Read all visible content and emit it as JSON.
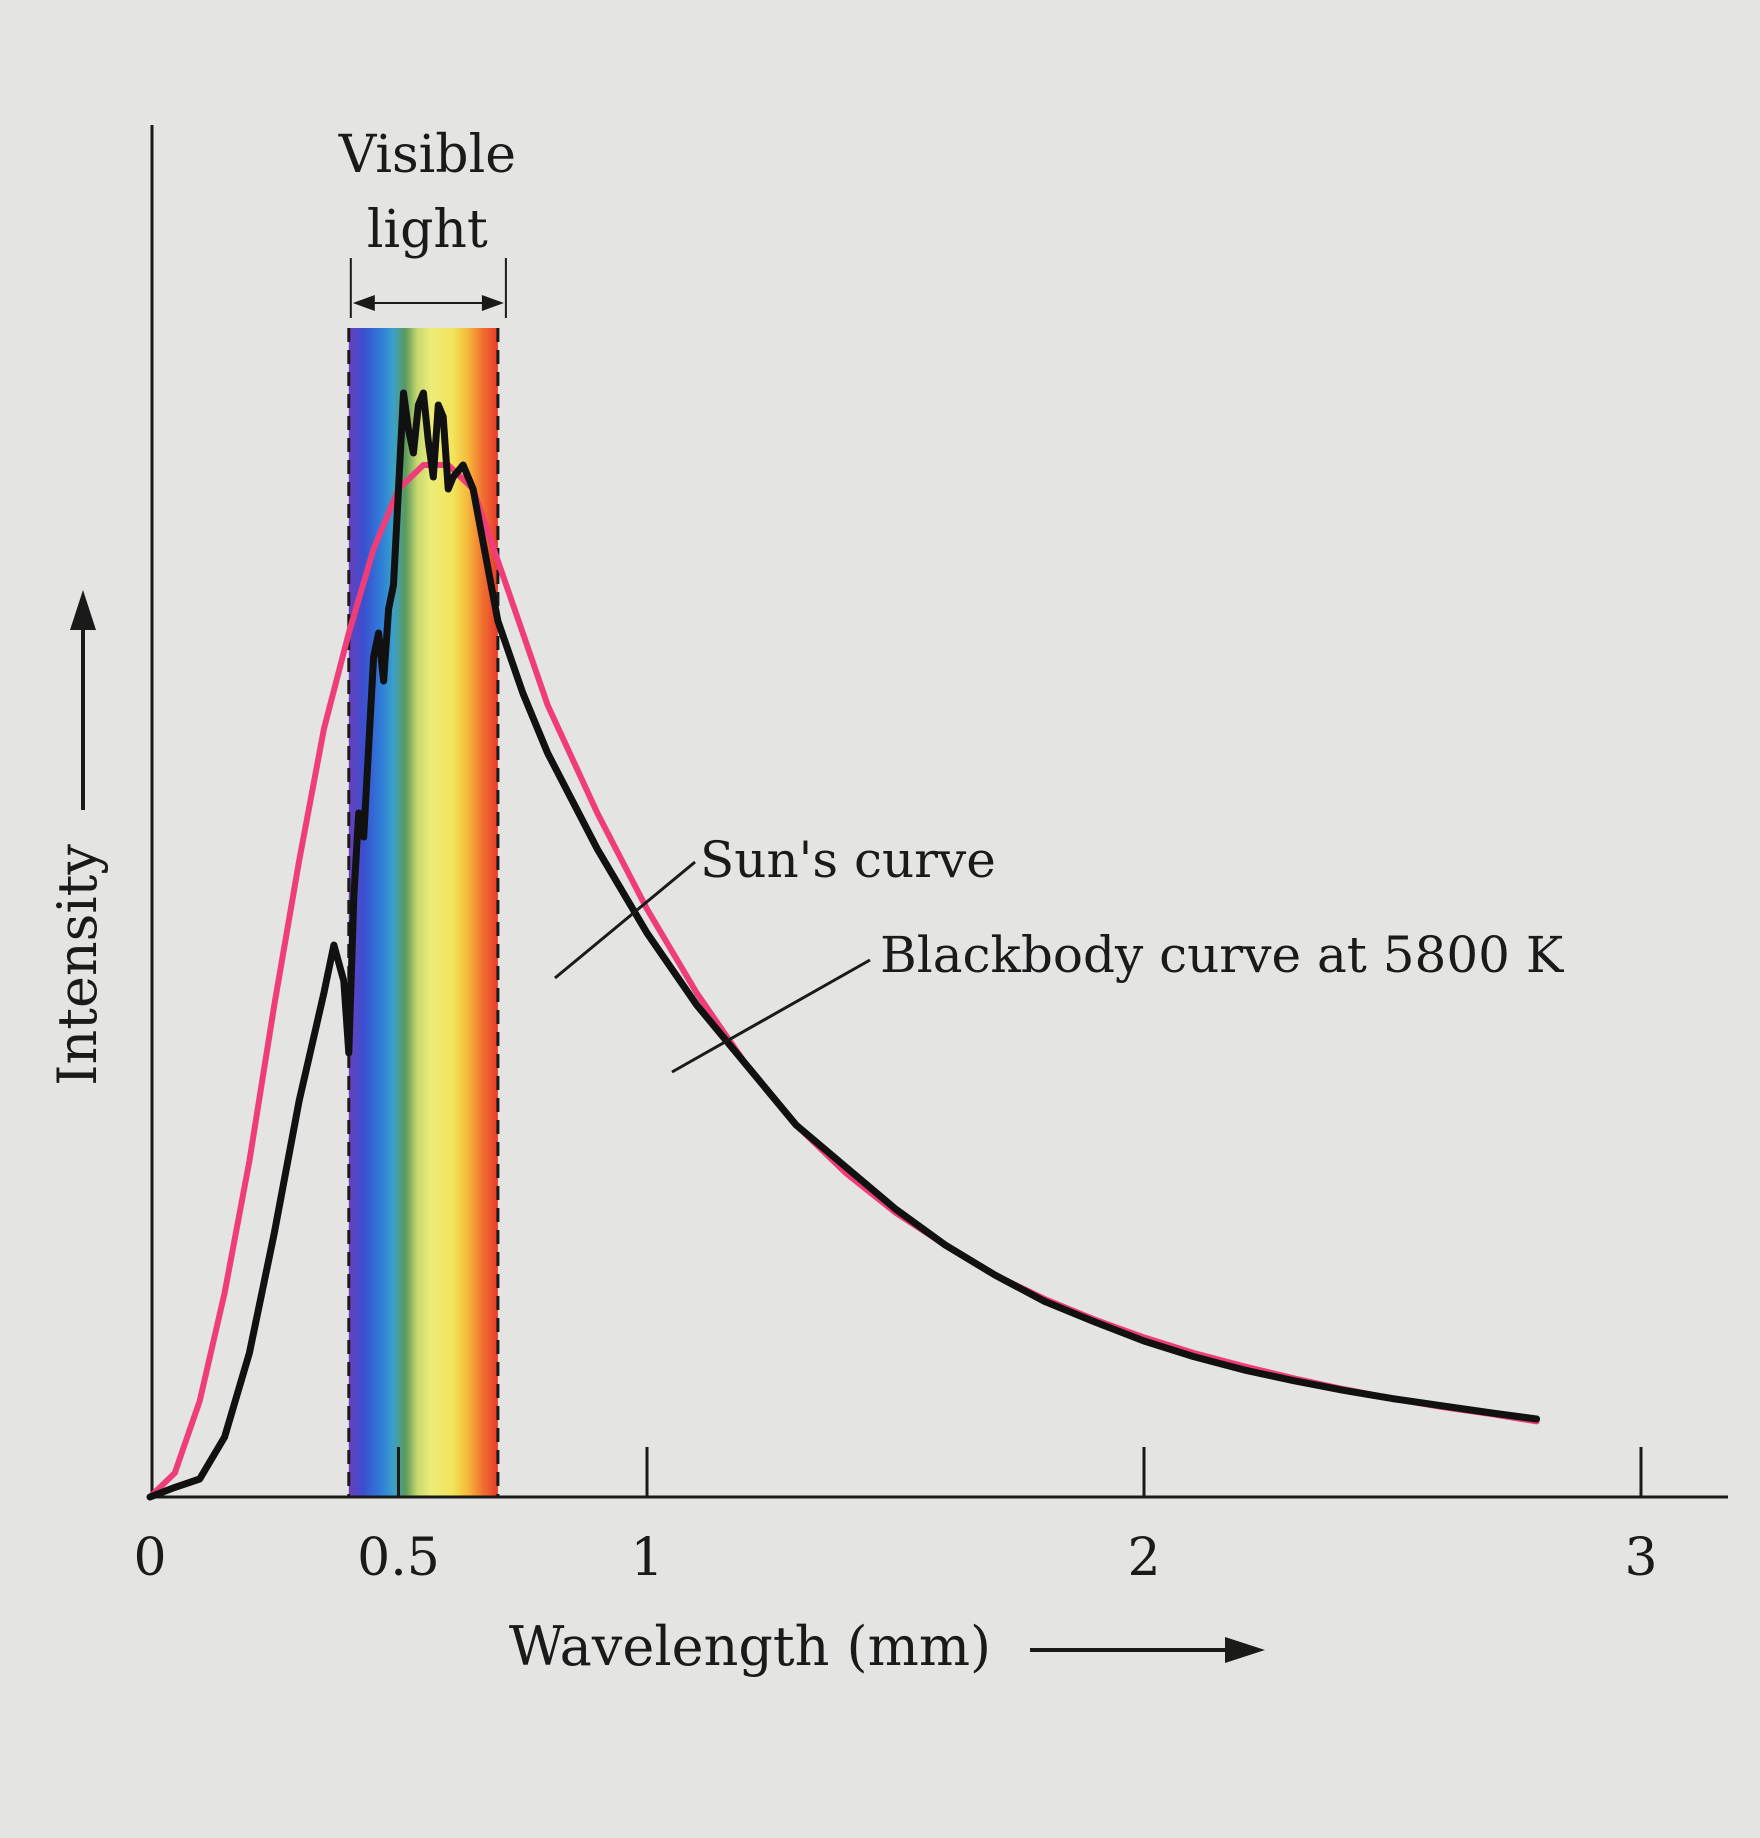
{
  "chart_data": {
    "type": "line",
    "title": "",
    "xlabel": "Wavelength (mm)",
    "ylabel": "Intensity",
    "xlim": [
      0,
      3.15
    ],
    "ylim": [
      0,
      1.0
    ],
    "x_ticks": [
      0,
      0.5,
      1,
      2,
      3
    ],
    "x_tick_labels": [
      "0",
      "0.5",
      "1",
      "2",
      "3"
    ],
    "visible_band": {
      "label": "Visible light",
      "label_lines": [
        "Visible",
        "light"
      ],
      "range": [
        0.4,
        0.7
      ]
    },
    "series": [
      {
        "name": "Blackbody curve at 5800 K",
        "color": "#ee3d78",
        "x": [
          0.0,
          0.05,
          0.1,
          0.15,
          0.2,
          0.25,
          0.3,
          0.35,
          0.4,
          0.45,
          0.5,
          0.55,
          0.6,
          0.65,
          0.7,
          0.75,
          0.8,
          0.9,
          1.0,
          1.1,
          1.2,
          1.3,
          1.4,
          1.5,
          1.6,
          1.7,
          1.8,
          1.9,
          2.0,
          2.1,
          2.2,
          2.3,
          2.4,
          2.5,
          2.6,
          2.7,
          2.79
        ],
        "values": [
          0.0,
          0.02,
          0.08,
          0.17,
          0.28,
          0.41,
          0.53,
          0.64,
          0.72,
          0.79,
          0.84,
          0.86,
          0.86,
          0.84,
          0.78,
          0.72,
          0.66,
          0.57,
          0.49,
          0.42,
          0.36,
          0.31,
          0.27,
          0.237,
          0.21,
          0.185,
          0.165,
          0.148,
          0.133,
          0.12,
          0.109,
          0.099,
          0.09,
          0.082,
          0.075,
          0.069,
          0.063
        ]
      },
      {
        "name": "Sun's curve",
        "color": "#111111",
        "x": [
          0.0,
          0.05,
          0.1,
          0.15,
          0.2,
          0.25,
          0.3,
          0.35,
          0.37,
          0.39,
          0.4,
          0.41,
          0.42,
          0.43,
          0.45,
          0.46,
          0.47,
          0.48,
          0.49,
          0.5,
          0.51,
          0.52,
          0.53,
          0.54,
          0.55,
          0.56,
          0.57,
          0.58,
          0.59,
          0.6,
          0.61,
          0.63,
          0.65,
          0.7,
          0.75,
          0.8,
          0.9,
          1.0,
          1.1,
          1.2,
          1.3,
          1.4,
          1.5,
          1.6,
          1.7,
          1.8,
          1.9,
          2.0,
          2.1,
          2.2,
          2.3,
          2.4,
          2.5,
          2.6,
          2.7,
          2.79
        ],
        "values": [
          0.0,
          0.008,
          0.015,
          0.05,
          0.12,
          0.22,
          0.33,
          0.42,
          0.46,
          0.43,
          0.37,
          0.5,
          0.57,
          0.55,
          0.7,
          0.72,
          0.68,
          0.74,
          0.76,
          0.84,
          0.92,
          0.89,
          0.87,
          0.91,
          0.92,
          0.88,
          0.85,
          0.91,
          0.9,
          0.84,
          0.85,
          0.86,
          0.84,
          0.73,
          0.67,
          0.62,
          0.54,
          0.47,
          0.41,
          0.36,
          0.31,
          0.275,
          0.24,
          0.21,
          0.185,
          0.163,
          0.146,
          0.13,
          0.117,
          0.106,
          0.097,
          0.089,
          0.082,
          0.076,
          0.07,
          0.065
        ]
      }
    ],
    "annotations": [
      {
        "text": "Sun's curve",
        "target": "Sun's curve"
      },
      {
        "text": "Blackbody curve at 5800 K",
        "target": "Blackbody curve at 5800 K"
      }
    ]
  }
}
